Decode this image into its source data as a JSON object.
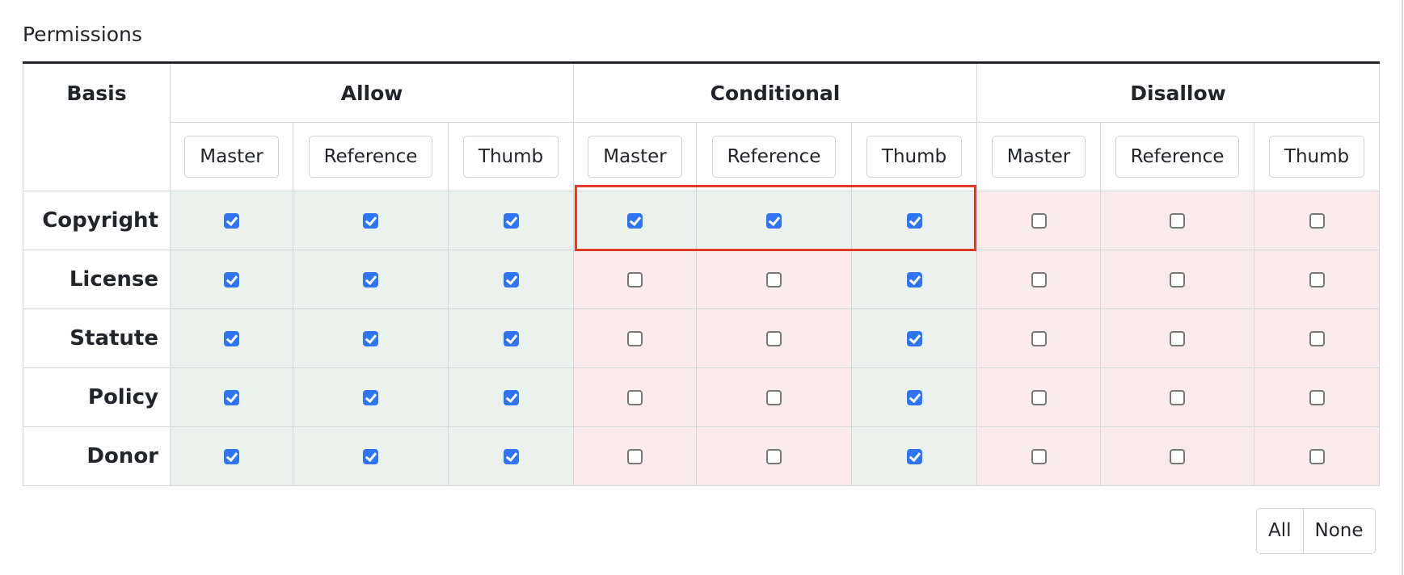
{
  "title": "Permissions",
  "basis_header": "Basis",
  "groups": [
    {
      "label": "Allow",
      "color": "#ebf1ed"
    },
    {
      "label": "Conditional",
      "color": "#f9ebeb"
    },
    {
      "label": "Disallow",
      "color": "#f9ebeb"
    }
  ],
  "sub_columns": [
    "Master",
    "Reference",
    "Thumb"
  ],
  "rows": [
    {
      "label": "Copyright",
      "checks": [
        true,
        true,
        true,
        true,
        true,
        true,
        false,
        false,
        false
      ]
    },
    {
      "label": "License",
      "checks": [
        true,
        true,
        true,
        false,
        false,
        true,
        false,
        false,
        false
      ]
    },
    {
      "label": "Statute",
      "checks": [
        true,
        true,
        true,
        false,
        false,
        true,
        false,
        false,
        false
      ]
    },
    {
      "label": "Policy",
      "checks": [
        true,
        true,
        true,
        false,
        false,
        true,
        false,
        false,
        false
      ]
    },
    {
      "label": "Donor",
      "checks": [
        true,
        true,
        true,
        false,
        false,
        true,
        false,
        false,
        false
      ]
    }
  ],
  "highlight": {
    "row": "Copyright",
    "group": "Conditional",
    "color": "#e03c25"
  },
  "buttons": {
    "all": "All",
    "none": "None"
  },
  "colors": {
    "checked_bg": "#ebf1ed",
    "unchecked_bg": "#f9ebeb",
    "checkbox": "#2f74f5"
  }
}
